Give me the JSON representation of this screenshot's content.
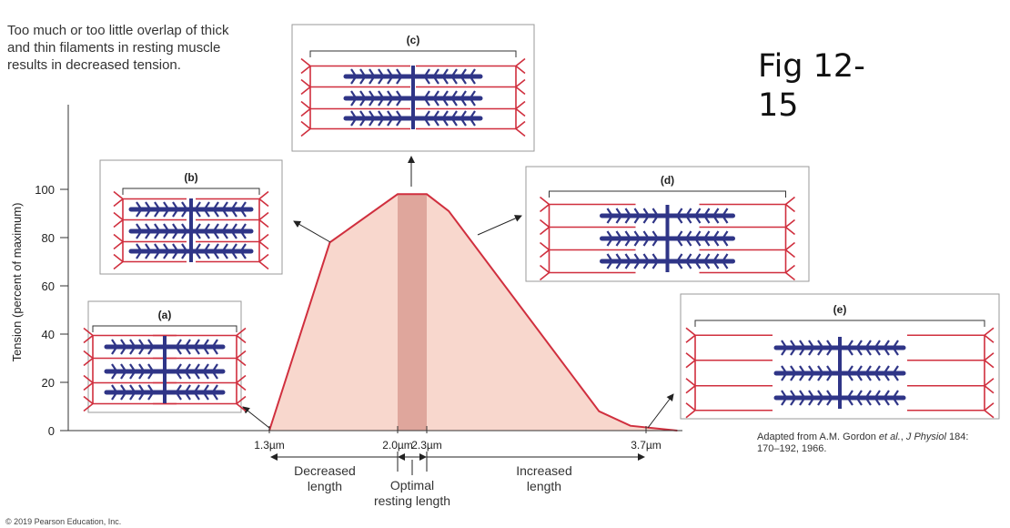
{
  "intro_text": [
    "Too much or too little overlap of thick",
    "and thin filaments in resting muscle",
    "results in decreased tension."
  ],
  "figure_label": [
    "Fig 12-",
    "15"
  ],
  "credit": {
    "prefix": "Adapted from A.M. Gordon ",
    "etal": "et al.",
    "mid": ", ",
    "journal": "J Physiol",
    "suffix": " 184:",
    "line2": "170–192, 1966."
  },
  "copyright": "© 2019 Pearson Education, Inc.",
  "colors": {
    "curve": "#d02f3e",
    "fill": "#f8d7cd",
    "optimal_band": "#dfa69c",
    "thick_filament": "#2f3587",
    "thin_filament": "#d02f3e"
  },
  "chart_data": {
    "type": "area",
    "ylabel": "Tension (percent of maximum)",
    "ylim": [
      0,
      100
    ],
    "yticks": [
      0,
      20,
      40,
      60,
      80,
      100
    ],
    "xticks": [
      "1.3µm",
      "2.0µm",
      "2.3µm",
      "3.7µm"
    ],
    "xtick_values": [
      1.3,
      2.0,
      2.3,
      3.7
    ],
    "x_unit": "µm",
    "series": [
      {
        "points": [
          [
            1.3,
            0
          ],
          [
            1.63,
            78
          ],
          [
            2.0,
            98
          ],
          [
            2.3,
            98
          ],
          [
            2.44,
            91
          ],
          [
            3.4,
            8
          ],
          [
            3.6,
            2
          ],
          [
            3.9,
            0
          ]
        ]
      }
    ],
    "highlight_range": [
      2.0,
      2.3
    ],
    "grid": false,
    "annotations": {
      "decreased": [
        "Decreased",
        "length"
      ],
      "optimal": [
        "Optimal",
        "resting length"
      ],
      "increased": [
        "Increased",
        "length"
      ]
    }
  },
  "insets": [
    {
      "label": "(a)",
      "at_x": 1.3
    },
    {
      "label": "(b)",
      "at_x": 1.63
    },
    {
      "label": "(c)",
      "at_x": 2.15
    },
    {
      "label": "(d)",
      "at_x": 2.6
    },
    {
      "label": "(e)",
      "at_x": 3.7
    }
  ]
}
